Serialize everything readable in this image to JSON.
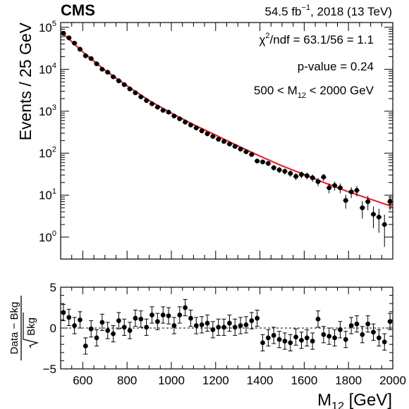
{
  "header": {
    "experiment": "CMS",
    "lumi_pre": "54.5 fb",
    "lumi_sup": "−1",
    "lumi_post": ", 2018 (13 TeV)"
  },
  "annotations": {
    "chi2_pre": "χ",
    "chi2_sup": "2",
    "chi2_post": "/ndf = 63.1/56 = 1.1",
    "pvalue": "p-value = 0.24",
    "range_pre": "500 < M",
    "range_sub": "12",
    "range_post": " < 2000 GeV"
  },
  "chart_data": [
    {
      "type": "scatter",
      "panel": "main",
      "ylabel": "Events / 25 GeV",
      "yscale": "log",
      "xlim": [
        500,
        2000
      ],
      "ylim": [
        0.3,
        130000
      ],
      "y_ticks": [
        {
          "exp": "0",
          "value": 1
        },
        {
          "exp": "1",
          "value": 10
        },
        {
          "exp": "2",
          "value": 100
        },
        {
          "exp": "3",
          "value": 1000
        },
        {
          "exp": "4",
          "value": 10000
        },
        {
          "exp": "5",
          "value": 100000
        }
      ],
      "fit_color": "#e8262e",
      "fit_points": [
        [
          500,
          80000
        ],
        [
          600,
          26000
        ],
        [
          700,
          9500
        ],
        [
          800,
          4000
        ],
        [
          900,
          1800
        ],
        [
          1000,
          900
        ],
        [
          1100,
          480
        ],
        [
          1200,
          270
        ],
        [
          1300,
          150
        ],
        [
          1400,
          85
        ],
        [
          1500,
          50
        ],
        [
          1600,
          31
        ],
        [
          1700,
          19
        ],
        [
          1800,
          12
        ],
        [
          1900,
          8
        ],
        [
          2000,
          5.3
        ]
      ],
      "x": [
        512.5,
        537.5,
        562.5,
        587.5,
        612.5,
        637.5,
        662.5,
        687.5,
        712.5,
        737.5,
        762.5,
        787.5,
        812.5,
        837.5,
        862.5,
        887.5,
        912.5,
        937.5,
        962.5,
        987.5,
        1012.5,
        1037.5,
        1062.5,
        1087.5,
        1112.5,
        1137.5,
        1162.5,
        1187.5,
        1212.5,
        1237.5,
        1262.5,
        1287.5,
        1312.5,
        1337.5,
        1362.5,
        1387.5,
        1412.5,
        1437.5,
        1462.5,
        1487.5,
        1512.5,
        1537.5,
        1562.5,
        1587.5,
        1612.5,
        1637.5,
        1662.5,
        1687.5,
        1712.5,
        1737.5,
        1762.5,
        1787.5,
        1812.5,
        1837.5,
        1862.5,
        1887.5,
        1912.5,
        1937.5,
        1962.5,
        1987.5
      ],
      "y": [
        72000,
        56000,
        42000,
        30000,
        21000,
        18000,
        13500,
        10000,
        8500,
        6600,
        5300,
        4300,
        3400,
        2750,
        2200,
        1800,
        1500,
        1250,
        1050,
        950,
        770,
        660,
        550,
        470,
        400,
        340,
        290,
        250,
        215,
        190,
        165,
        145,
        125,
        108,
        93,
        65,
        62,
        57,
        45,
        40,
        37,
        33,
        28,
        31,
        29,
        26,
        21,
        27,
        15,
        17,
        15,
        7.5,
        12,
        13,
        5,
        7,
        3.5,
        3,
        2,
        7
      ]
    },
    {
      "type": "scatter",
      "panel": "ratio",
      "xlabel": "M12 [GeV]",
      "xlabel_main": "M",
      "xlabel_sub": "12",
      "xlabel_unit": " [GeV]",
      "ylabel_num": "Data − Bkg",
      "ylabel_den": "Bkg",
      "xlim": [
        500,
        2000
      ],
      "ylim": [
        -5,
        5
      ],
      "x_ticks": [
        "600",
        "800",
        "1000",
        "1200",
        "1400",
        "1600",
        "1800",
        "2000"
      ],
      "y_ticks": [
        "5",
        "0",
        "−5"
      ],
      "x": [
        512.5,
        537.5,
        562.5,
        587.5,
        612.5,
        637.5,
        662.5,
        687.5,
        712.5,
        737.5,
        762.5,
        787.5,
        812.5,
        837.5,
        862.5,
        887.5,
        912.5,
        937.5,
        962.5,
        987.5,
        1012.5,
        1037.5,
        1062.5,
        1087.5,
        1112.5,
        1137.5,
        1162.5,
        1187.5,
        1212.5,
        1237.5,
        1262.5,
        1287.5,
        1312.5,
        1337.5,
        1362.5,
        1387.5,
        1412.5,
        1437.5,
        1462.5,
        1487.5,
        1512.5,
        1537.5,
        1562.5,
        1587.5,
        1612.5,
        1637.5,
        1662.5,
        1687.5,
        1712.5,
        1737.5,
        1762.5,
        1787.5,
        1812.5,
        1837.5,
        1862.5,
        1887.5,
        1912.5,
        1937.5,
        1962.5,
        1987.5
      ],
      "y": [
        1.9,
        1.3,
        0.3,
        1.0,
        -2.2,
        -0.1,
        -1.2,
        0.7,
        -0.3,
        -0.7,
        0.9,
        0.1,
        -0.3,
        1.2,
        1.1,
        0.1,
        1.6,
        0.8,
        1.6,
        1.5,
        0.3,
        1.6,
        2.5,
        1.2,
        0.3,
        0.4,
        0.6,
        -0.2,
        0.1,
        0.1,
        0.6,
        0.1,
        0.3,
        0.4,
        0.9,
        1.2,
        -1.8,
        -1.2,
        -0.9,
        -1.4,
        -1.6,
        -1.8,
        -1.1,
        -1.5,
        -1.2,
        -1.6,
        1.1,
        -0.8,
        -1.0,
        -1.2,
        -0.2,
        -1.4,
        0.3,
        0.5,
        -0.8,
        0.5,
        -0.5,
        -1.2,
        -1.7,
        0.8
      ]
    }
  ]
}
